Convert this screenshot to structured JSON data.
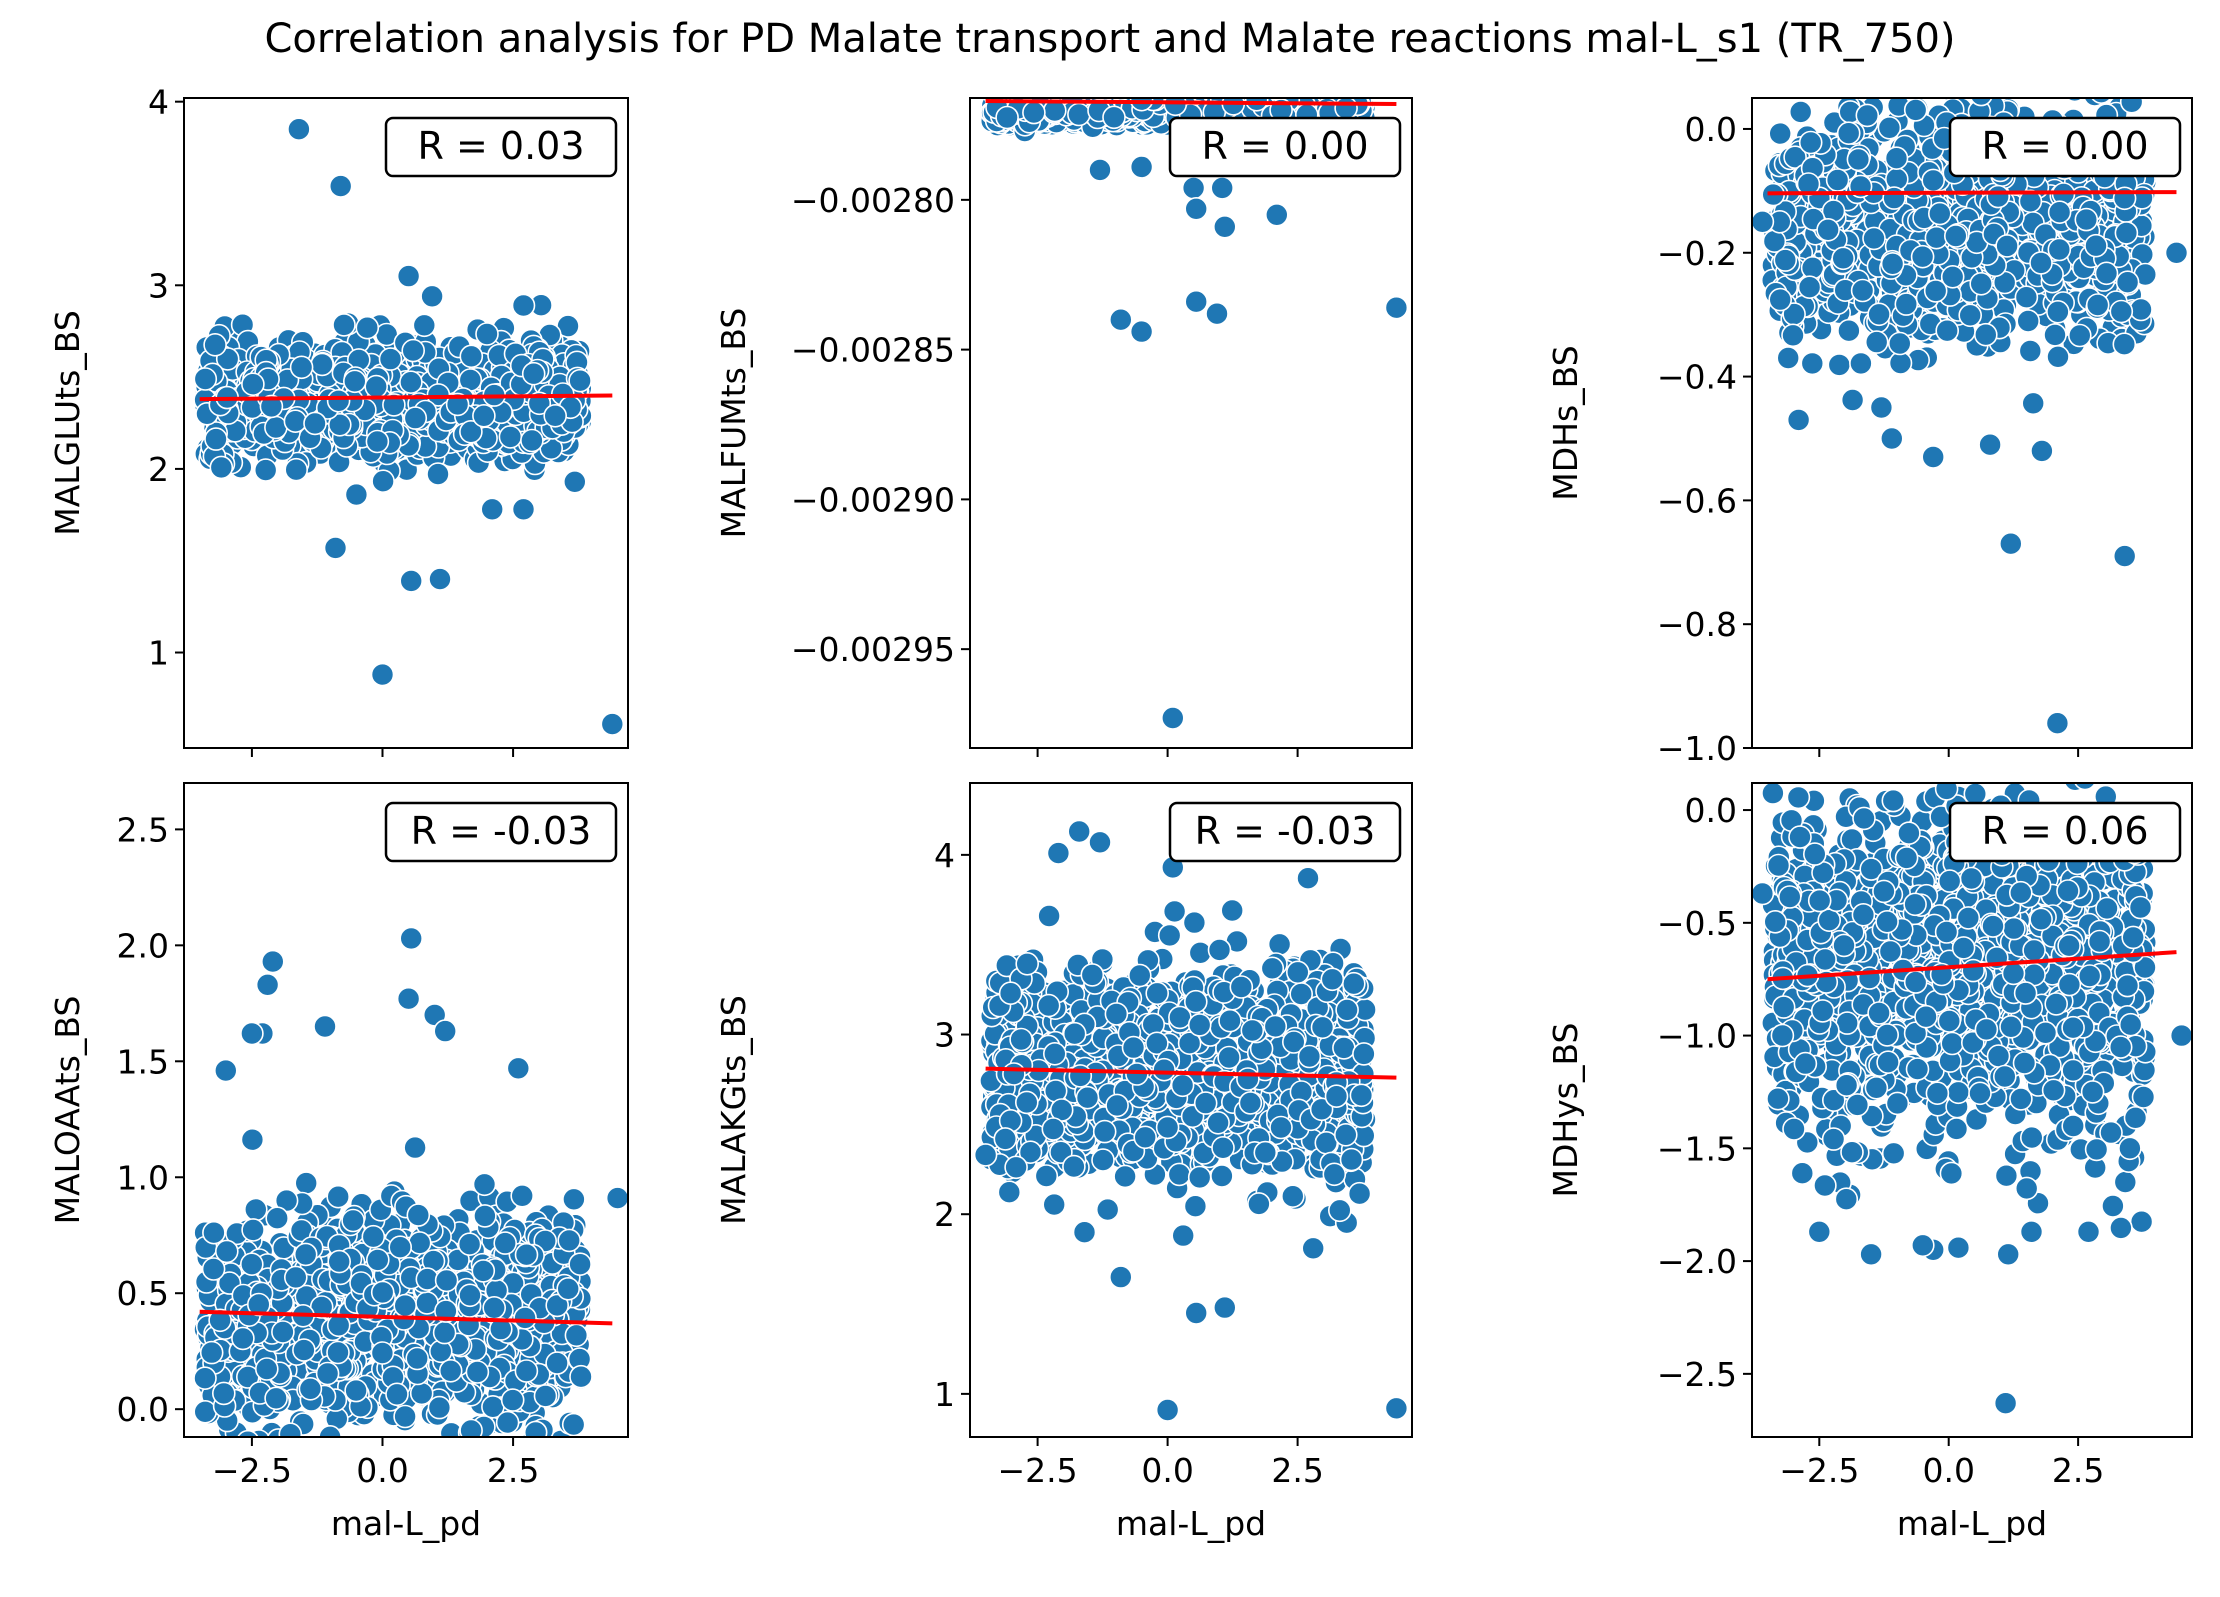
{
  "figure": {
    "title": "Correlation analysis for PD Malate transport and  Malate reactions mal-L_s1 (TR_750)"
  },
  "style": {
    "point_color": "#1f77b4",
    "point_edge": "#ffffff",
    "line_color": "#ff0000",
    "axes_color": "#000000",
    "background": "#ffffff"
  },
  "chart_data": [
    {
      "type": "scatter",
      "xlabel": "",
      "ylabel": "MALGLUts_BS",
      "xlim": [
        -3.8,
        4.7
      ],
      "ylim": [
        0.48,
        4.02
      ],
      "xticks": [
        -2.5,
        0.0,
        2.5
      ],
      "xtick_labels": [
        "−2.5",
        "0.0",
        "2.5"
      ],
      "xtick_labels_visible": false,
      "yticks": [
        1,
        2,
        3,
        4
      ],
      "ytick_labels": [
        "1",
        "2",
        "3",
        "4"
      ],
      "annotation": "R = 0.03",
      "fit_line": {
        "x": [
          -3.5,
          4.4
        ],
        "y": [
          2.38,
          2.4
        ]
      },
      "cloud": {
        "x_range": [
          -3.4,
          3.8
        ],
        "y_center": 2.38,
        "y_spread": 0.27
      },
      "outliers": [
        {
          "x": -1.6,
          "y": 3.85
        },
        {
          "x": -0.8,
          "y": 3.54
        },
        {
          "x": 0.5,
          "y": 3.05
        },
        {
          "x": 0.95,
          "y": 2.94
        },
        {
          "x": -0.9,
          "y": 1.57
        },
        {
          "x": 0.55,
          "y": 1.39
        },
        {
          "x": 1.1,
          "y": 1.4
        },
        {
          "x": 0.0,
          "y": 0.88
        },
        {
          "x": 4.4,
          "y": 0.61
        },
        {
          "x": 2.1,
          "y": 1.78
        },
        {
          "x": 2.7,
          "y": 1.78
        },
        {
          "x": -0.5,
          "y": 1.86
        },
        {
          "x": 2.7,
          "y": 2.89
        }
      ]
    },
    {
      "type": "scatter",
      "xlabel": "",
      "ylabel": "MALFUMts_BS",
      "xlim": [
        -3.8,
        4.7
      ],
      "ylim": [
        -0.002983,
        -0.002766
      ],
      "xticks": [
        -2.5,
        0.0,
        2.5
      ],
      "xtick_labels": [
        "−2.5",
        "0.0",
        "2.5"
      ],
      "xtick_labels_visible": false,
      "yticks": [
        -0.00295,
        -0.0029,
        -0.00285,
        -0.0028
      ],
      "ytick_labels": [
        "−0.00295",
        "−0.00290",
        "−0.00285",
        "−0.00280"
      ],
      "annotation": "R = 0.00",
      "fit_line": {
        "x": [
          -3.5,
          4.4
        ],
        "y": [
          -0.002767,
          -0.002768
        ]
      },
      "cloud": {
        "x_range": [
          -3.4,
          3.8
        ],
        "y_center": -0.00277,
        "y_spread": 4e-06
      },
      "outliers": [
        {
          "x": -1.3,
          "y": -0.00279
        },
        {
          "x": -0.5,
          "y": -0.002789
        },
        {
          "x": 0.5,
          "y": -0.002796
        },
        {
          "x": 0.55,
          "y": -0.002803
        },
        {
          "x": 1.1,
          "y": -0.002809
        },
        {
          "x": 1.05,
          "y": -0.002796
        },
        {
          "x": 2.1,
          "y": -0.002805
        },
        {
          "x": 2.1,
          "y": -0.002787
        },
        {
          "x": -0.9,
          "y": -0.00284
        },
        {
          "x": -0.5,
          "y": -0.002844
        },
        {
          "x": 0.55,
          "y": -0.002834
        },
        {
          "x": 0.95,
          "y": -0.002838
        },
        {
          "x": 4.4,
          "y": -0.002836
        },
        {
          "x": 0.1,
          "y": -0.002973
        },
        {
          "x": 3.4,
          "y": -0.002784
        }
      ]
    },
    {
      "type": "scatter",
      "xlabel": "",
      "ylabel": "MDHs_BS",
      "xlim": [
        -3.8,
        4.7
      ],
      "ylim": [
        -1.0,
        0.05
      ],
      "xticks": [
        -2.5,
        0.0,
        2.5
      ],
      "xtick_labels": [
        "−2.5",
        "0.0",
        "2.5"
      ],
      "xtick_labels_visible": false,
      "yticks": [
        -1.0,
        -0.8,
        -0.6,
        -0.4,
        -0.2,
        0.0
      ],
      "ytick_labels": [
        "−1.0",
        "−0.8",
        "−0.6",
        "−0.4",
        "−0.2",
        "0.0"
      ],
      "annotation": "R = 0.00",
      "fit_line": {
        "x": [
          -3.5,
          4.4
        ],
        "y": [
          -0.104,
          -0.102
        ]
      },
      "cloud": {
        "x_range": [
          -3.4,
          3.8
        ],
        "y_center": -0.16,
        "y_spread": 0.16
      },
      "outliers": [
        {
          "x": -3.6,
          "y": -0.15
        },
        {
          "x": -3.1,
          "y": -0.37
        },
        {
          "x": -2.9,
          "y": -0.47
        },
        {
          "x": -1.1,
          "y": -0.5
        },
        {
          "x": -0.3,
          "y": -0.53
        },
        {
          "x": 0.8,
          "y": -0.51
        },
        {
          "x": 1.8,
          "y": -0.52
        },
        {
          "x": 1.2,
          "y": -0.67
        },
        {
          "x": 3.4,
          "y": -0.69
        },
        {
          "x": 2.1,
          "y": -0.96
        },
        {
          "x": 4.4,
          "y": -0.2
        },
        {
          "x": -1.3,
          "y": -0.45
        }
      ]
    },
    {
      "type": "scatter",
      "xlabel": "mal-L_pd",
      "ylabel": "MALOAAts_BS",
      "xlim": [
        -3.8,
        4.7
      ],
      "ylim": [
        -0.12,
        2.7
      ],
      "xticks": [
        -2.5,
        0.0,
        2.5
      ],
      "xtick_labels": [
        "−2.5",
        "0.0",
        "2.5"
      ],
      "xtick_labels_visible": true,
      "yticks": [
        0.0,
        0.5,
        1.0,
        1.5,
        2.0,
        2.5
      ],
      "ytick_labels": [
        "0.0",
        "0.5",
        "1.0",
        "1.5",
        "2.0",
        "2.5"
      ],
      "annotation": "R = -0.03",
      "fit_line": {
        "x": [
          -3.5,
          4.4
        ],
        "y": [
          0.42,
          0.37
        ]
      },
      "cloud": {
        "x_range": [
          -3.4,
          3.8
        ],
        "y_center": 0.4,
        "y_spread": 0.4
      },
      "outliers": [
        {
          "x": -2.3,
          "y": 1.62
        },
        {
          "x": -2.1,
          "y": 1.93
        },
        {
          "x": -2.2,
          "y": 1.83
        },
        {
          "x": -3.0,
          "y": 1.46
        },
        {
          "x": -2.5,
          "y": 1.62
        },
        {
          "x": 0.55,
          "y": 2.03
        },
        {
          "x": 0.5,
          "y": 1.77
        },
        {
          "x": 1.0,
          "y": 1.7
        },
        {
          "x": -1.1,
          "y": 1.65
        },
        {
          "x": 2.6,
          "y": 1.47
        },
        {
          "x": 4.5,
          "y": 0.91
        },
        {
          "x": 3.8,
          "y": 0.14
        },
        {
          "x": 1.2,
          "y": 1.63
        }
      ]
    },
    {
      "type": "scatter",
      "xlabel": "mal-L_pd",
      "ylabel": "MALAKGts_BS",
      "xlim": [
        -3.8,
        4.7
      ],
      "ylim": [
        0.76,
        4.4
      ],
      "xticks": [
        -2.5,
        0.0,
        2.5
      ],
      "xtick_labels": [
        "−2.5",
        "0.0",
        "2.5"
      ],
      "xtick_labels_visible": true,
      "yticks": [
        1,
        2,
        3,
        4
      ],
      "ytick_labels": [
        "1",
        "2",
        "3",
        "4"
      ],
      "annotation": "R = -0.03",
      "fit_line": {
        "x": [
          -3.5,
          4.4
        ],
        "y": [
          2.81,
          2.76
        ]
      },
      "cloud": {
        "x_range": [
          -3.4,
          3.8
        ],
        "y_center": 2.8,
        "y_spread": 0.52
      },
      "outliers": [
        {
          "x": -2.1,
          "y": 4.01
        },
        {
          "x": -1.7,
          "y": 4.13
        },
        {
          "x": -1.3,
          "y": 4.07
        },
        {
          "x": -3.5,
          "y": 2.33
        },
        {
          "x": -0.9,
          "y": 1.65
        },
        {
          "x": 0.55,
          "y": 1.45
        },
        {
          "x": 1.1,
          "y": 1.48
        },
        {
          "x": 0.0,
          "y": 0.91
        },
        {
          "x": 4.4,
          "y": 0.92
        },
        {
          "x": 2.8,
          "y": 1.81
        },
        {
          "x": 0.1,
          "y": 3.93
        },
        {
          "x": 2.7,
          "y": 3.87
        }
      ]
    },
    {
      "type": "scatter",
      "xlabel": "mal-L_pd",
      "ylabel": "MDHys_BS",
      "xlim": [
        -3.8,
        4.7
      ],
      "ylim": [
        -2.78,
        0.12
      ],
      "xticks": [
        -2.5,
        0.0,
        2.5
      ],
      "xtick_labels": [
        "−2.5",
        "0.0",
        "2.5"
      ],
      "xtick_labels_visible": true,
      "yticks": [
        -2.5,
        -2.0,
        -1.5,
        -1.0,
        -0.5,
        0.0
      ],
      "ytick_labels": [
        "−2.5",
        "−2.0",
        "−1.5",
        "−1.0",
        "−0.5",
        "0.0"
      ],
      "annotation": "R = 0.06",
      "fit_line": {
        "x": [
          -3.5,
          4.4
        ],
        "y": [
          -0.75,
          -0.63
        ]
      },
      "cloud": {
        "x_range": [
          -3.4,
          3.8
        ],
        "y_center": -0.7,
        "y_spread": 0.65
      },
      "outliers": [
        {
          "x": -3.6,
          "y": -0.37
        },
        {
          "x": -3.3,
          "y": -1.28
        },
        {
          "x": -2.5,
          "y": -1.87
        },
        {
          "x": -1.5,
          "y": -1.97
        },
        {
          "x": -0.3,
          "y": -1.95
        },
        {
          "x": 1.15,
          "y": -1.97
        },
        {
          "x": 1.1,
          "y": -2.63
        },
        {
          "x": 4.5,
          "y": -1.0
        },
        {
          "x": 2.7,
          "y": -1.87
        },
        {
          "x": -0.5,
          "y": -1.93
        },
        {
          "x": 1.6,
          "y": -1.87
        },
        {
          "x": 3.5,
          "y": -1.5
        }
      ]
    }
  ]
}
